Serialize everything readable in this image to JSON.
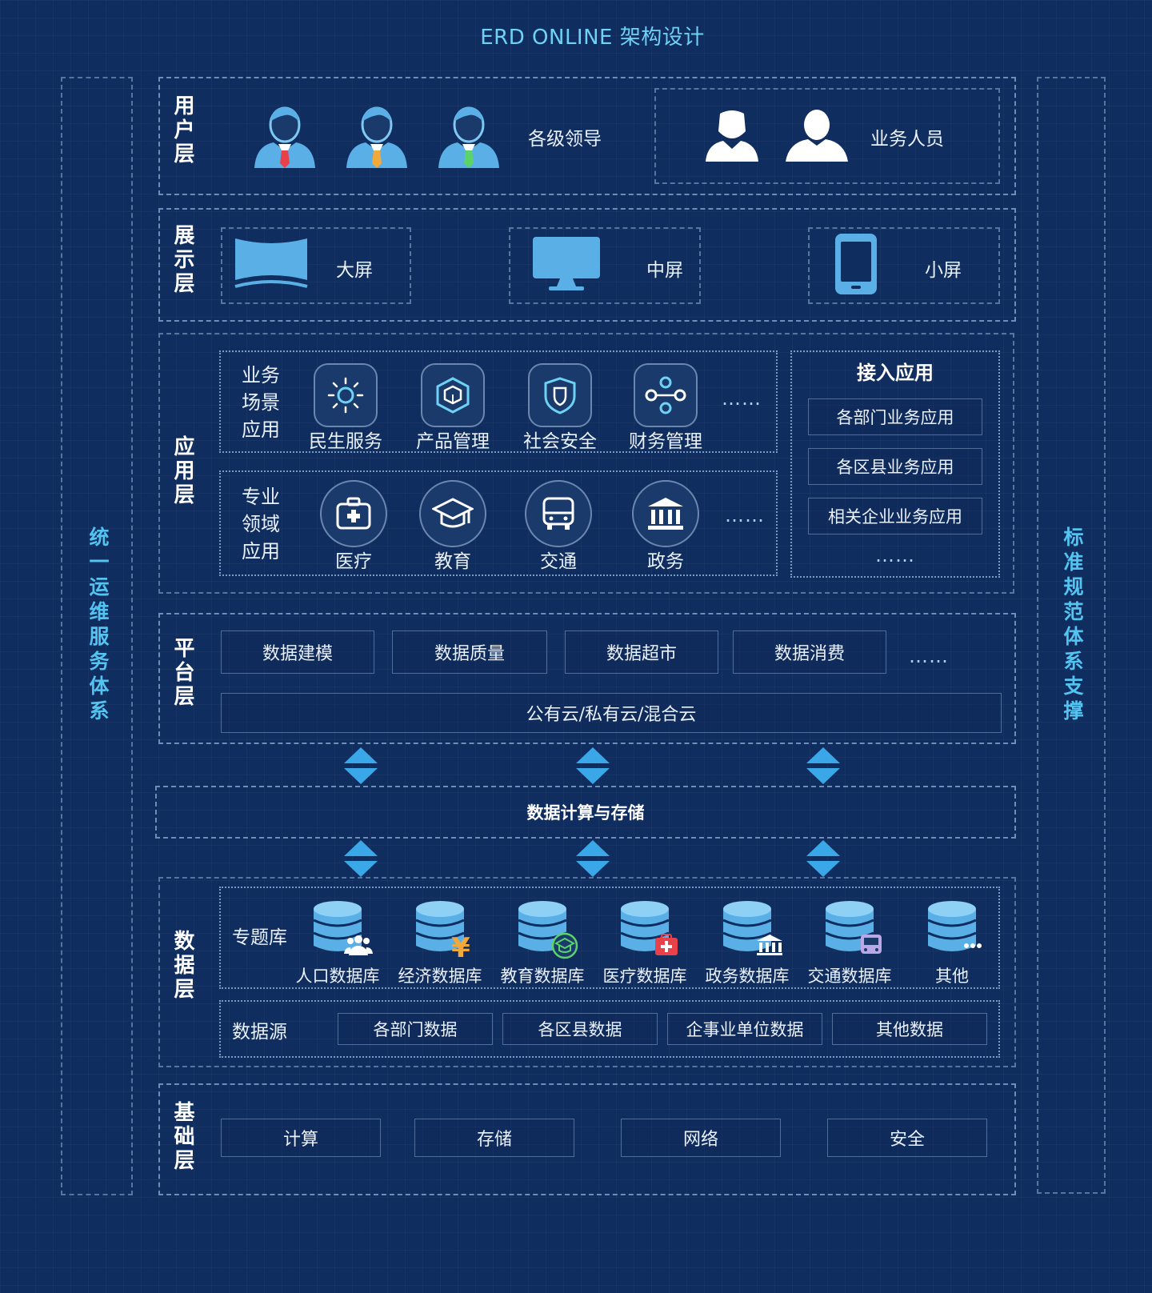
{
  "title": "ERD ONLINE 架构设计",
  "left_side": "统一运维服务体系",
  "right_side": "标准规范体系支撑",
  "user_layer": {
    "label": "用户层",
    "leaders": "各级领导",
    "staff": "业务人员"
  },
  "display_layer": {
    "label": "展示层",
    "screens": [
      "大屏",
      "中屏",
      "小屏"
    ]
  },
  "app_layer": {
    "label": "应用层",
    "scenario_label": "业务\n场景\n应用",
    "scenario_apps": [
      "民生服务",
      "产品管理",
      "社会安全",
      "财务管理"
    ],
    "domain_label": "专业\n领域\n应用",
    "domain_apps": [
      "医疗",
      "教育",
      "交通",
      "政务"
    ],
    "more": "……",
    "access": {
      "title": "接入应用",
      "items": [
        "各部门业务应用",
        "各区县业务应用",
        "相关企业业务应用"
      ],
      "more": "……"
    }
  },
  "platform_layer": {
    "label": "平台层",
    "modules": [
      "数据建模",
      "数据质量",
      "数据超市",
      "数据消费"
    ],
    "more": "……",
    "cloud": "公有云/私有云/混合云"
  },
  "compute_storage": "数据计算与存储",
  "data_layer": {
    "label": "数据层",
    "topic_label": "专题库",
    "databases": [
      "人口数据库",
      "经济数据库",
      "教育数据库",
      "医疗数据库",
      "政务数据库",
      "交通数据库",
      "其他"
    ],
    "source_label": "数据源",
    "sources": [
      "各部门数据",
      "各区县数据",
      "企事业单位数据",
      "其他数据"
    ]
  },
  "infra_layer": {
    "label": "基础层",
    "items": [
      "计算",
      "存储",
      "网络",
      "安全"
    ]
  },
  "colors": {
    "background": "#0f2d5f",
    "title": "#6fd2f4",
    "side_text": "#53c3f0",
    "icon_blue": "#5ab0e6",
    "arrow": "#3aa8e8"
  }
}
